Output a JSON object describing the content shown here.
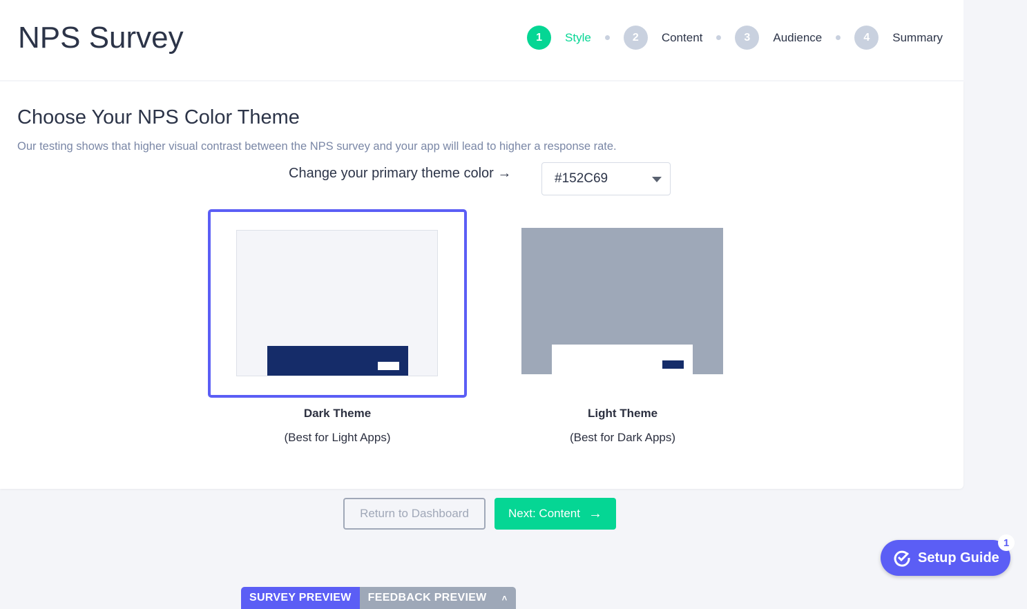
{
  "header": {
    "title": "NPS Survey",
    "steps": [
      {
        "num": "1",
        "label": "Style",
        "active": true
      },
      {
        "num": "2",
        "label": "Content"
      },
      {
        "num": "3",
        "label": "Audience"
      },
      {
        "num": "4",
        "label": "Summary"
      }
    ]
  },
  "main": {
    "heading": "Choose Your NPS Color Theme",
    "subtitle": "Our testing shows that higher visual contrast between the NPS survey and your app will lead to higher a response rate.",
    "color_label": "Change your primary theme color →",
    "color_value": "#152C69",
    "themes": [
      {
        "title": "Dark Theme",
        "subtitle": "(Best for Light Apps)",
        "selected": true
      },
      {
        "title": "Light Theme",
        "subtitle": "(Best for Dark Apps)",
        "selected": false
      }
    ]
  },
  "actions": {
    "return": "Return to Dashboard",
    "next": "Next: Content"
  },
  "setup_guide": {
    "label": "Setup Guide",
    "badge": "1"
  },
  "preview_tabs": {
    "survey": "SURVEY PREVIEW",
    "feedback": "FEEDBACK PREVIEW"
  },
  "colors": {
    "accent": "#05d694",
    "primary": "#152C69",
    "brand": "#5b5ef5"
  }
}
